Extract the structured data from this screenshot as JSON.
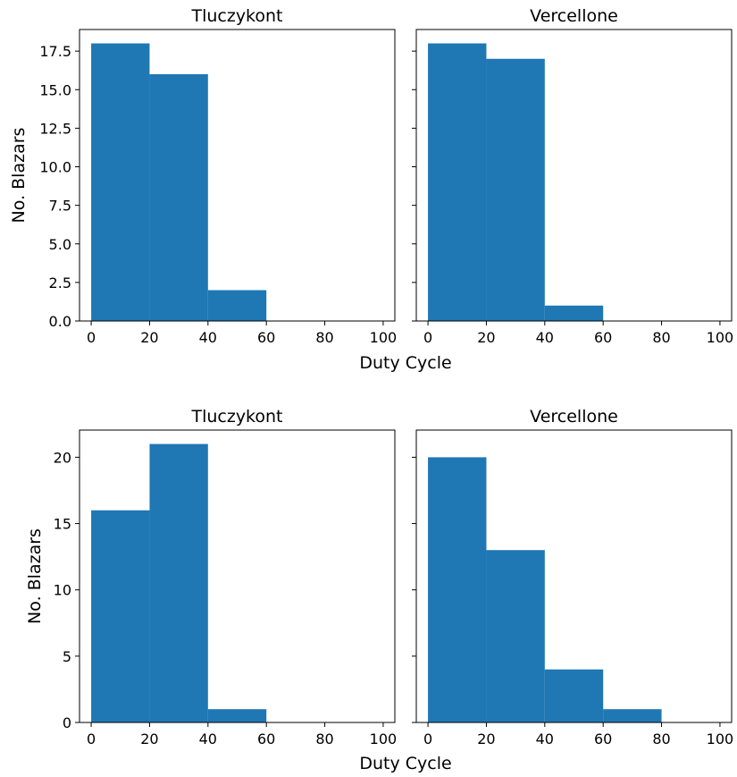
{
  "bar_color": "#1f77b4",
  "chart_data": [
    {
      "type": "bar",
      "title": "Tluczykont",
      "bin_edges": [
        0,
        20,
        40,
        60,
        80,
        100
      ],
      "values": [
        18,
        16,
        2,
        0,
        0
      ],
      "xlim": [
        -4,
        104
      ],
      "ylim": [
        0,
        18.9
      ],
      "xticks": [
        0,
        20,
        40,
        60,
        80,
        100
      ],
      "yticks": [
        0.0,
        2.5,
        5.0,
        7.5,
        10.0,
        12.5,
        15.0,
        17.5
      ],
      "ytick_labels": [
        "0.0",
        "2.5",
        "5.0",
        "7.5",
        "10.0",
        "12.5",
        "15.0",
        "17.5"
      ],
      "ylabel": "No. Blazars",
      "xlabel": ""
    },
    {
      "type": "bar",
      "title": "Vercellone",
      "bin_edges": [
        0,
        20,
        40,
        60,
        80,
        100
      ],
      "values": [
        18,
        17,
        1,
        0,
        0
      ],
      "xlim": [
        -4,
        104
      ],
      "ylim": [
        0,
        18.9
      ],
      "xticks": [
        0,
        20,
        40,
        60,
        80,
        100
      ],
      "yticks": [
        0.0,
        2.5,
        5.0,
        7.5,
        10.0,
        12.5,
        15.0,
        17.5
      ],
      "ytick_labels": [],
      "ylabel": "",
      "xlabel": ""
    },
    {
      "type": "bar",
      "title": "Tluczykont",
      "bin_edges": [
        0,
        20,
        40,
        60,
        80,
        100
      ],
      "values": [
        16,
        21,
        1,
        0,
        0
      ],
      "xlim": [
        -4,
        104
      ],
      "ylim": [
        0,
        22.05
      ],
      "xticks": [
        0,
        20,
        40,
        60,
        80,
        100
      ],
      "yticks": [
        0,
        5,
        10,
        15,
        20
      ],
      "ytick_labels": [
        "0",
        "5",
        "10",
        "15",
        "20"
      ],
      "ylabel": "No. Blazars",
      "xlabel": ""
    },
    {
      "type": "bar",
      "title": "Vercellone",
      "bin_edges": [
        0,
        20,
        40,
        60,
        80,
        100
      ],
      "values": [
        20,
        13,
        4,
        1,
        0
      ],
      "xlim": [
        -4,
        104
      ],
      "ylim": [
        0,
        22.05
      ],
      "xticks": [
        0,
        20,
        40,
        60,
        80,
        100
      ],
      "yticks": [
        0,
        5,
        10,
        15,
        20
      ],
      "ytick_labels": [],
      "ylabel": "",
      "xlabel": ""
    }
  ],
  "shared_xlabels": [
    "Duty Cycle",
    "Duty Cycle"
  ]
}
